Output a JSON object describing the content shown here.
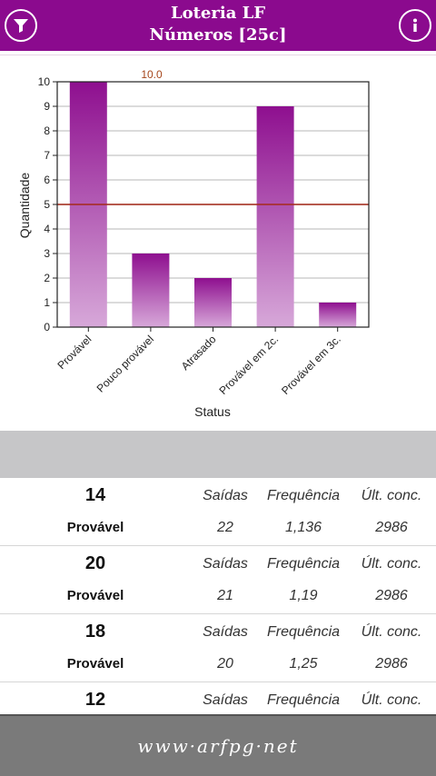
{
  "header": {
    "title": "Loteria LF",
    "subtitle": "Números [25c]",
    "left_icon": "filter-icon",
    "right_icon": "info-icon"
  },
  "colors": {
    "header_bg": "#8b0a8e",
    "bar_top": "#8e0f8f",
    "bar_bottom": "#d7a8d9",
    "threshold_line": "#a52a1a"
  },
  "chart_data": {
    "type": "bar",
    "categories": [
      "Provável",
      "Pouco provável",
      "Atrasado",
      "Provável em 2c.",
      "Provável em 3c."
    ],
    "values": [
      10,
      3,
      2,
      9,
      1
    ],
    "xlabel": "Status",
    "ylabel": "Quantidade",
    "ylim": [
      0,
      10
    ],
    "yticks": [
      0,
      1,
      2,
      3,
      4,
      5,
      6,
      7,
      8,
      9,
      10
    ],
    "threshold": 5,
    "max_label": "10.0",
    "grid": true
  },
  "rows": [
    {
      "number": "14",
      "status": "Provável",
      "saidas": "22",
      "frequencia": "1,136",
      "ultimo": "2986"
    },
    {
      "number": "20",
      "status": "Provável",
      "saidas": "21",
      "frequencia": "1,19",
      "ultimo": "2986"
    },
    {
      "number": "18",
      "status": "Provável",
      "saidas": "20",
      "frequencia": "1,25",
      "ultimo": "2986"
    },
    {
      "number": "12",
      "status": "",
      "saidas": "",
      "frequencia": "",
      "ultimo": ""
    }
  ],
  "columns": {
    "saidas": "Saídas",
    "frequencia": "Frequência",
    "ultimo": "Últ. conc."
  },
  "footer": {
    "text": "www·arfpg·net"
  }
}
